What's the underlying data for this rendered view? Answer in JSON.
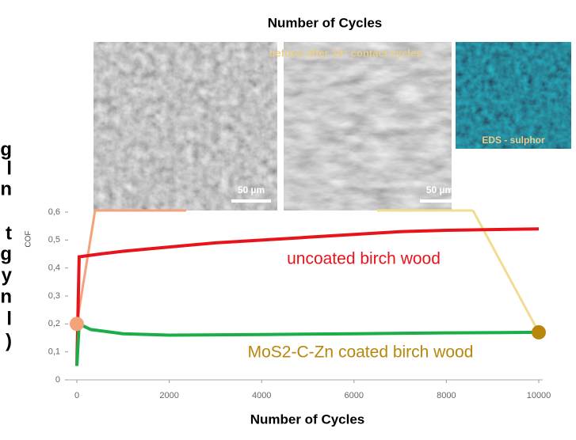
{
  "chart_data": {
    "type": "line",
    "top_title": "Number of Cycles",
    "x_label": "Number of Cycles",
    "y_label": "COF",
    "xlim": [
      0,
      10000
    ],
    "xticks": [
      0,
      2000,
      4000,
      6000,
      8000,
      10000
    ],
    "ylim": [
      0,
      0.6
    ],
    "yticks": [
      {
        "value": 0,
        "label": "0"
      },
      {
        "value": 0.1,
        "label": "0,1"
      },
      {
        "value": 0.2,
        "label": "0,2"
      },
      {
        "value": 0.3,
        "label": "0,3"
      },
      {
        "value": 0.4,
        "label": "0,4"
      },
      {
        "value": 0.5,
        "label": "0,5"
      },
      {
        "value": 0.6,
        "label": "0,6"
      }
    ],
    "series": [
      {
        "name": "uncoated birch wood",
        "color": "#e8141c",
        "x": [
          0,
          50,
          500,
          1000,
          2000,
          3000,
          4000,
          5000,
          6000,
          7000,
          8000,
          10000
        ],
        "values": [
          0.05,
          0.44,
          0.45,
          0.46,
          0.475,
          0.49,
          0.5,
          0.51,
          0.52,
          0.53,
          0.535,
          0.54
        ]
      },
      {
        "name": "MoS2-C-Zn coated birch wood",
        "color": "#1aad4a",
        "x": [
          0,
          50,
          300,
          1000,
          2000,
          4000,
          6000,
          8000,
          10000
        ],
        "values": [
          0.05,
          0.2,
          0.18,
          0.165,
          0.16,
          0.162,
          0.165,
          0.168,
          0.17
        ]
      }
    ],
    "markers": [
      {
        "x": 0,
        "y": 0.2,
        "color": "#f4a27c"
      },
      {
        "x": 10000,
        "y": 0.17,
        "color": "#b8860b"
      }
    ],
    "inset_caption": "before/ after 10⁴ contact cycles",
    "scale_bars": [
      "50 µm",
      "50 µm"
    ],
    "eds_label": "EDS - sulphor",
    "left_fragments": [
      "g",
      "l",
      "n",
      "t",
      "g",
      "y",
      "n",
      "l",
      ")"
    ]
  }
}
